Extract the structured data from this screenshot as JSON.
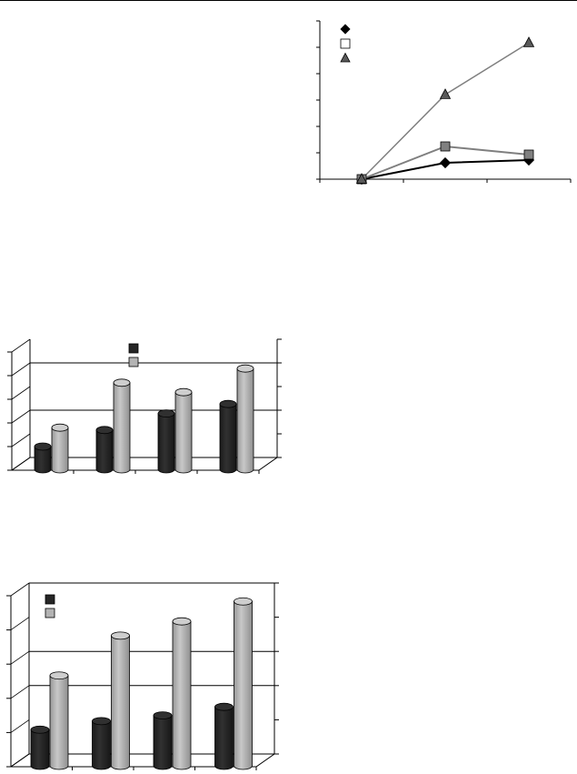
{
  "chart_data": [
    {
      "type": "line",
      "x": [
        1,
        2,
        3
      ],
      "series": [
        {
          "marker": "diamond",
          "color": "#000000",
          "values": [
            0,
            0.6,
            0.7
          ]
        },
        {
          "marker": "square",
          "color": "#808080",
          "values": [
            0,
            1.2,
            0.9
          ]
        },
        {
          "marker": "triangle",
          "color": "#595959",
          "values": [
            0,
            3.1,
            5.0
          ]
        }
      ],
      "ylim": [
        0,
        5.8
      ],
      "xlim": [
        0.5,
        3.5
      ],
      "legend": "top-left",
      "grid": false
    },
    {
      "type": "bar",
      "categories": [
        "",
        "",
        "",
        ""
      ],
      "series": [
        {
          "color": "#262626",
          "values": [
            1,
            1.7,
            2.4,
            2.8
          ]
        },
        {
          "color": "#b3b3b3",
          "values": [
            1.8,
            3.7,
            3.3,
            4.3
          ]
        }
      ],
      "ylim": [
        0,
        5
      ],
      "legend": "top-center",
      "grid": true
    },
    {
      "type": "bar",
      "categories": [
        "",
        "",
        "",
        ""
      ],
      "series": [
        {
          "color": "#262626",
          "values": [
            1.3,
            1.6,
            1.8,
            2.1
          ]
        },
        {
          "color": "#b3b3b3",
          "values": [
            3.2,
            4.6,
            5.1,
            5.8
          ]
        }
      ],
      "ylim": [
        0,
        6
      ],
      "legend": "top-left",
      "grid": true
    }
  ]
}
